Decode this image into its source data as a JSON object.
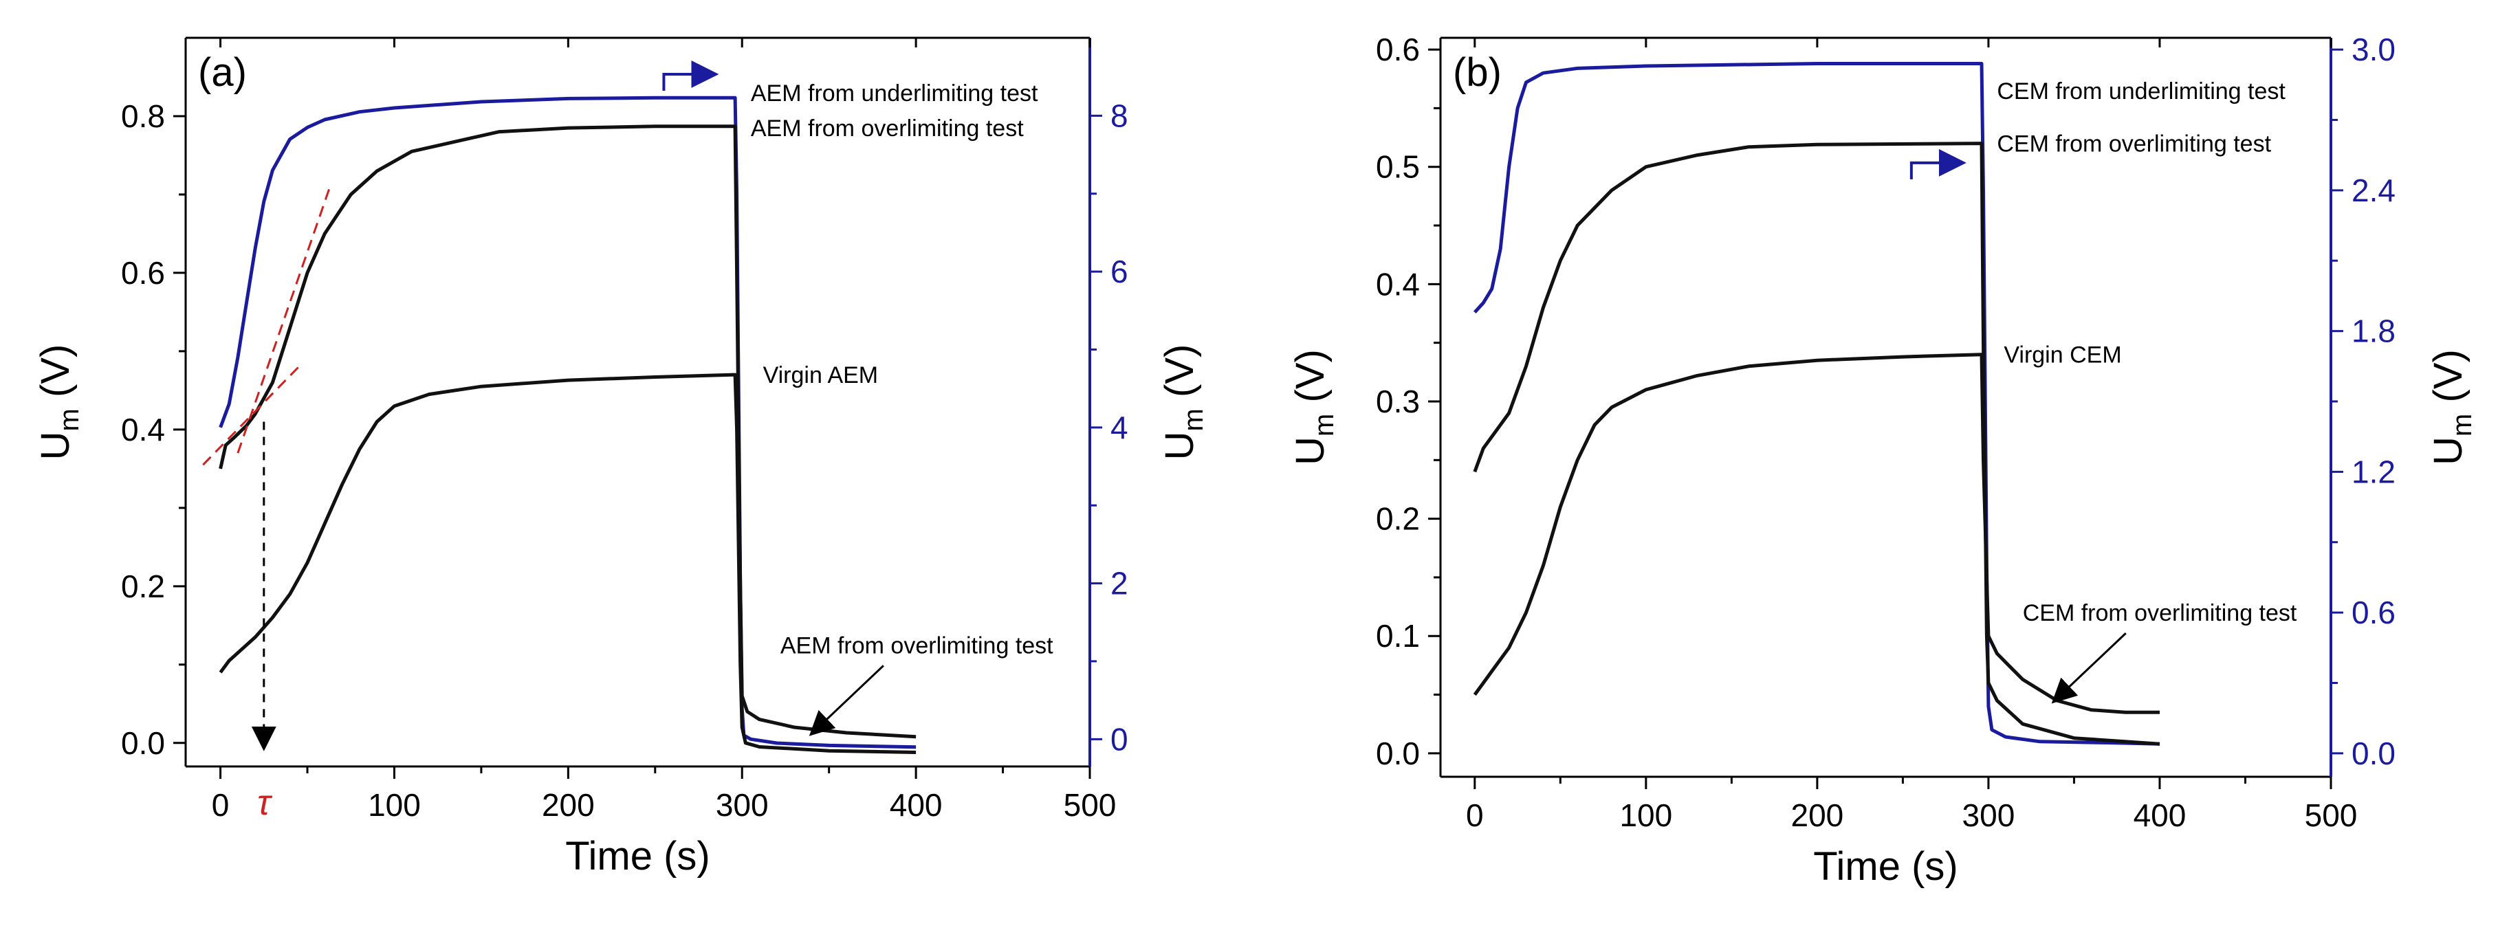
{
  "chart_data": [
    {
      "type": "line",
      "panel_label": "(a)",
      "xlabel": "Time (s)",
      "ylabel_left": {
        "main": "U",
        "sub": "m",
        "unit": "(V)"
      },
      "ylabel_right": {
        "main": "U",
        "sub": "m",
        "unit": "(V)"
      },
      "xlim": [
        -20,
        500
      ],
      "ylim_left": [
        -0.03,
        0.9
      ],
      "ylim_right": [
        -0.35,
        9.0
      ],
      "x_ticks": [
        0,
        100,
        200,
        300,
        400,
        500
      ],
      "x_tick_labels": [
        "0",
        "100",
        "200",
        "300",
        "400",
        "500"
      ],
      "y_left_ticks": [
        0.0,
        0.2,
        0.4,
        0.6,
        0.8
      ],
      "y_left_tick_labels": [
        "0.0",
        "0.2",
        "0.4",
        "0.6",
        "0.8"
      ],
      "y_right_ticks": [
        0,
        2,
        4,
        6,
        8
      ],
      "y_right_tick_labels": [
        "0",
        "2",
        "4",
        "6",
        "8"
      ],
      "series": [
        {
          "name": "AEM from underlimiting test",
          "axis": "right",
          "color": "#1b1b9e",
          "points": [
            [
              0,
              4.0
            ],
            [
              5,
              4.3
            ],
            [
              10,
              4.9
            ],
            [
              15,
              5.6
            ],
            [
              20,
              6.3
            ],
            [
              25,
              6.9
            ],
            [
              30,
              7.3
            ],
            [
              40,
              7.7
            ],
            [
              50,
              7.85
            ],
            [
              60,
              7.95
            ],
            [
              80,
              8.05
            ],
            [
              100,
              8.1
            ],
            [
              150,
              8.18
            ],
            [
              200,
              8.22
            ],
            [
              250,
              8.23
            ],
            [
              296,
              8.23
            ],
            [
              297,
              7.0
            ],
            [
              299,
              2.0
            ],
            [
              300,
              0.4
            ],
            [
              301,
              0.05
            ],
            [
              305,
              0.0
            ],
            [
              320,
              -0.05
            ],
            [
              350,
              -0.08
            ],
            [
              400,
              -0.1
            ]
          ]
        },
        {
          "name": "AEM from overlimiting test",
          "axis": "left",
          "color": "#111111",
          "points": [
            [
              0,
              0.35
            ],
            [
              3,
              0.38
            ],
            [
              8,
              0.39
            ],
            [
              15,
              0.405
            ],
            [
              20,
              0.42
            ],
            [
              30,
              0.46
            ],
            [
              40,
              0.53
            ],
            [
              50,
              0.6
            ],
            [
              60,
              0.65
            ],
            [
              75,
              0.7
            ],
            [
              90,
              0.73
            ],
            [
              110,
              0.755
            ],
            [
              140,
              0.77
            ],
            [
              160,
              0.78
            ],
            [
              200,
              0.785
            ],
            [
              250,
              0.787
            ],
            [
              296,
              0.787
            ],
            [
              297,
              0.6
            ],
            [
              299,
              0.2
            ],
            [
              300,
              0.06
            ],
            [
              303,
              0.04
            ],
            [
              310,
              0.03
            ],
            [
              330,
              0.02
            ],
            [
              360,
              0.013
            ],
            [
              400,
              0.008
            ]
          ]
        },
        {
          "name": "Virgin AEM",
          "axis": "left",
          "color": "#111111",
          "points": [
            [
              0,
              0.09
            ],
            [
              5,
              0.105
            ],
            [
              10,
              0.115
            ],
            [
              20,
              0.135
            ],
            [
              30,
              0.16
            ],
            [
              40,
              0.19
            ],
            [
              50,
              0.23
            ],
            [
              60,
              0.28
            ],
            [
              70,
              0.33
            ],
            [
              80,
              0.375
            ],
            [
              90,
              0.41
            ],
            [
              100,
              0.43
            ],
            [
              120,
              0.445
            ],
            [
              150,
              0.455
            ],
            [
              200,
              0.463
            ],
            [
              250,
              0.467
            ],
            [
              296,
              0.47
            ],
            [
              297,
              0.4
            ],
            [
              299,
              0.1
            ],
            [
              300,
              0.02
            ],
            [
              302,
              0.0
            ],
            [
              310,
              -0.005
            ],
            [
              350,
              -0.01
            ],
            [
              400,
              -0.012
            ]
          ]
        }
      ],
      "tangent_lines": [
        {
          "from": [
            -10,
            0.355
          ],
          "to": [
            45,
            0.48
          ]
        },
        {
          "from": [
            10,
            0.37
          ],
          "to": [
            63,
            0.71
          ]
        }
      ],
      "tau_marker": {
        "label": "τ",
        "x": 25,
        "y_top": 0.41,
        "y_bottom": 0.0
      },
      "annotations": [
        {
          "text": "AEM from underlimiting test",
          "x": 305,
          "y": 0.83
        },
        {
          "text": "AEM from overlimiting test",
          "x": 305,
          "y": 0.785
        },
        {
          "text": "Virgin AEM",
          "x": 312,
          "y": 0.47
        },
        {
          "text": "AEM from overlimiting test",
          "x": 322,
          "y": 0.125
        }
      ]
    },
    {
      "type": "line",
      "panel_label": "(b)",
      "xlabel": "Time (s)",
      "ylabel_left": {
        "main": "U",
        "sub": "m",
        "unit": "(V)"
      },
      "ylabel_right": {
        "main": "U",
        "sub": "m",
        "unit": "(V)"
      },
      "xlim": [
        -20,
        500
      ],
      "ylim_left": [
        -0.02,
        0.61
      ],
      "ylim_right": [
        -0.1,
        3.05
      ],
      "x_ticks": [
        0,
        100,
        200,
        300,
        400,
        500
      ],
      "x_tick_labels": [
        "0",
        "100",
        "200",
        "300",
        "400",
        "500"
      ],
      "y_left_ticks": [
        0.0,
        0.1,
        0.2,
        0.3,
        0.4,
        0.5,
        0.6
      ],
      "y_left_tick_labels": [
        "0.0",
        "0.1",
        "0.2",
        "0.3",
        "0.4",
        "0.5",
        "0.6"
      ],
      "y_right_ticks": [
        0.0,
        0.6,
        1.2,
        1.8,
        2.4,
        3.0
      ],
      "y_right_tick_labels": [
        "0.0",
        "0.6",
        "1.2",
        "1.8",
        "2.4",
        "3.0"
      ],
      "series": [
        {
          "name": "CEM from underlimiting test",
          "axis": "right",
          "color": "#1b1b9e",
          "points": [
            [
              0,
              1.88
            ],
            [
              5,
              1.92
            ],
            [
              10,
              1.98
            ],
            [
              15,
              2.15
            ],
            [
              20,
              2.5
            ],
            [
              25,
              2.75
            ],
            [
              30,
              2.86
            ],
            [
              40,
              2.9
            ],
            [
              60,
              2.92
            ],
            [
              100,
              2.93
            ],
            [
              200,
              2.94
            ],
            [
              296,
              2.94
            ],
            [
              297,
              2.4
            ],
            [
              299,
              0.8
            ],
            [
              300,
              0.2
            ],
            [
              302,
              0.1
            ],
            [
              310,
              0.07
            ],
            [
              330,
              0.05
            ],
            [
              370,
              0.045
            ],
            [
              400,
              0.04
            ]
          ]
        },
        {
          "name": "CEM from overlimiting test",
          "axis": "left",
          "color": "#111111",
          "points": [
            [
              0,
              0.24
            ],
            [
              5,
              0.26
            ],
            [
              10,
              0.27
            ],
            [
              20,
              0.29
            ],
            [
              30,
              0.33
            ],
            [
              40,
              0.38
            ],
            [
              50,
              0.42
            ],
            [
              60,
              0.45
            ],
            [
              80,
              0.48
            ],
            [
              100,
              0.5
            ],
            [
              130,
              0.51
            ],
            [
              160,
              0.517
            ],
            [
              200,
              0.519
            ],
            [
              296,
              0.52
            ],
            [
              297,
              0.35
            ],
            [
              299,
              0.1
            ],
            [
              300,
              0.06
            ],
            [
              305,
              0.045
            ],
            [
              320,
              0.025
            ],
            [
              350,
              0.013
            ],
            [
              400,
              0.008
            ]
          ]
        },
        {
          "name": "Virgin CEM",
          "axis": "left",
          "color": "#111111",
          "points": [
            [
              0,
              0.05
            ],
            [
              5,
              0.06
            ],
            [
              10,
              0.07
            ],
            [
              20,
              0.09
            ],
            [
              30,
              0.12
            ],
            [
              40,
              0.16
            ],
            [
              50,
              0.21
            ],
            [
              60,
              0.25
            ],
            [
              70,
              0.28
            ],
            [
              80,
              0.295
            ],
            [
              100,
              0.31
            ],
            [
              130,
              0.322
            ],
            [
              160,
              0.33
            ],
            [
              200,
              0.335
            ],
            [
              250,
              0.338
            ],
            [
              296,
              0.34
            ],
            [
              297,
              0.25
            ],
            [
              299,
              0.15
            ],
            [
              300,
              0.1
            ],
            [
              305,
              0.085
            ],
            [
              320,
              0.063
            ],
            [
              340,
              0.045
            ],
            [
              360,
              0.037
            ],
            [
              380,
              0.035
            ],
            [
              400,
              0.035
            ]
          ]
        }
      ],
      "annotations": [
        {
          "text": "CEM from underlimiting test",
          "x": 305,
          "y": 0.565
        },
        {
          "text": "CEM from overlimiting test",
          "x": 305,
          "y": 0.52
        },
        {
          "text": "Virgin CEM",
          "x": 309,
          "y": 0.34
        },
        {
          "text": "CEM from overlimiting test",
          "x": 320,
          "y": 0.12
        }
      ]
    }
  ]
}
